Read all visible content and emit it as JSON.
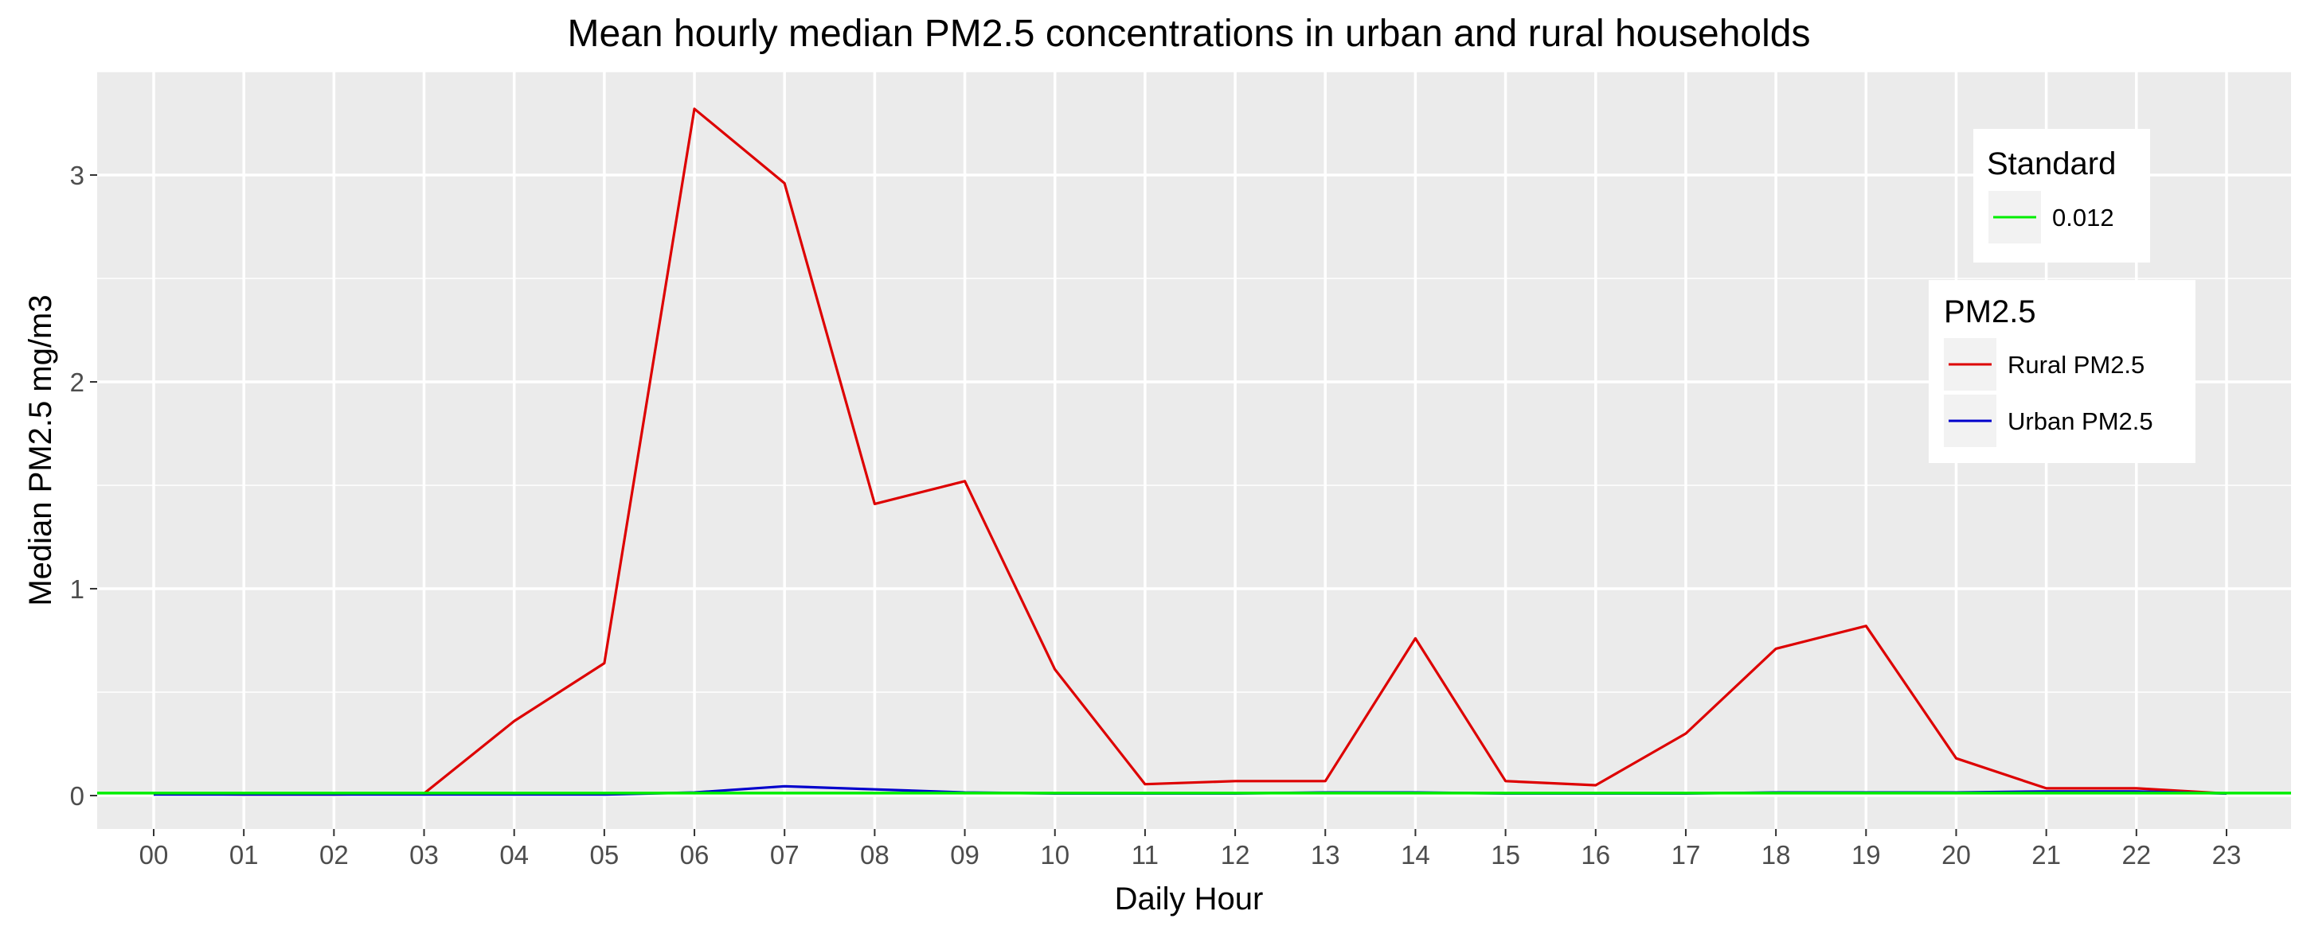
{
  "chart_data": {
    "type": "line",
    "title": "Mean hourly median PM2.5 concentrations in urban and rural households",
    "xlabel": "Daily Hour",
    "ylabel": "Median PM2.5 mg/m3",
    "categories": [
      "00",
      "01",
      "02",
      "03",
      "04",
      "05",
      "06",
      "07",
      "08",
      "09",
      "10",
      "11",
      "12",
      "13",
      "14",
      "15",
      "16",
      "17",
      "18",
      "19",
      "20",
      "21",
      "22",
      "23"
    ],
    "yticks": [
      "0",
      "1",
      "2",
      "3"
    ],
    "ylim": [
      -0.15,
      3.5
    ],
    "grid": true,
    "series": [
      {
        "name": "Rural PM2.5",
        "color": "#dd0000",
        "values": [
          0.01,
          0.005,
          0.005,
          0.01,
          0.36,
          0.64,
          3.32,
          2.96,
          1.41,
          1.52,
          0.61,
          0.055,
          0.07,
          0.07,
          0.76,
          0.07,
          0.05,
          0.3,
          0.71,
          0.82,
          0.18,
          0.035,
          0.035,
          0.01
        ]
      },
      {
        "name": "Urban PM2.5",
        "color": "#0000cc",
        "values": [
          0.005,
          0.005,
          0.005,
          0.005,
          0.005,
          0.005,
          0.015,
          0.045,
          0.03,
          0.015,
          0.01,
          0.01,
          0.01,
          0.015,
          0.015,
          0.01,
          0.01,
          0.01,
          0.015,
          0.015,
          0.015,
          0.02,
          0.02,
          0.01
        ]
      }
    ],
    "reference_line": {
      "value": 0.012,
      "color": "#00ee00"
    },
    "legends": [
      {
        "title": "Standard",
        "items": [
          {
            "label": "0.012",
            "color": "#00ee00"
          }
        ],
        "placement": "top-right"
      },
      {
        "title": "PM2.5",
        "items": [
          {
            "label": "Rural PM2.5",
            "color": "#dd0000"
          },
          {
            "label": "Urban PM2.5",
            "color": "#0000cc"
          }
        ],
        "placement": "right"
      }
    ],
    "panel_background": "#ebebeb",
    "grid_color": "#ffffff"
  }
}
